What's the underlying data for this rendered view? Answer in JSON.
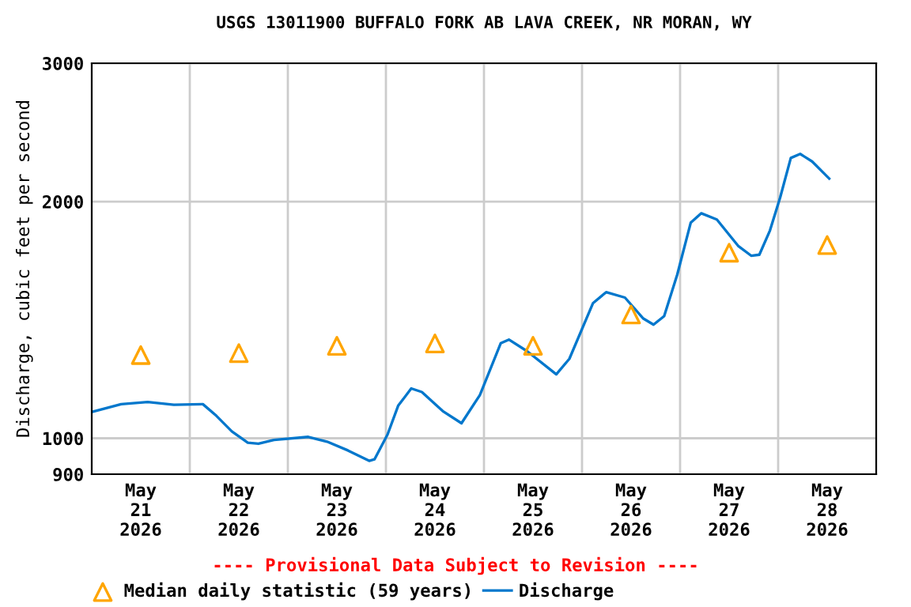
{
  "chart_data": {
    "type": "line",
    "title": "USGS 13011900 BUFFALO FORK AB LAVA CREEK, NR MORAN, WY",
    "ylabel": "Discharge, cubic feet per second",
    "annotations": [
      "---- Provisional Data Subject to Revision ----"
    ],
    "log": "y",
    "grid": true,
    "legend": "bottom",
    "xlim": [
      "2026-05-21T00:00",
      "2026-05-29T00:00"
    ],
    "xticks": [
      {
        "value": "2026-05-21T12:00",
        "label": "May\n21\n2026"
      },
      {
        "value": "2026-05-22T00:00",
        "label": null
      },
      {
        "value": "2026-05-22T12:00",
        "label": "May\n22\n2026"
      },
      {
        "value": "2026-05-23T00:00",
        "label": null
      },
      {
        "value": "2026-05-23T12:00",
        "label": "May\n23\n2026"
      },
      {
        "value": "2026-05-24T00:00",
        "label": null
      },
      {
        "value": "2026-05-24T12:00",
        "label": "May\n24\n2026"
      },
      {
        "value": "2026-05-25T00:00",
        "label": null
      },
      {
        "value": "2026-05-25T12:00",
        "label": "May\n25\n2026"
      },
      {
        "value": "2026-05-26T00:00",
        "label": null
      },
      {
        "value": "2026-05-26T12:00",
        "label": "May\n26\n2026"
      },
      {
        "value": "2026-05-27T00:00",
        "label": null
      },
      {
        "value": "2026-05-27T12:00",
        "label": "May\n27\n2026"
      },
      {
        "value": "2026-05-28T00:00",
        "label": null
      },
      {
        "value": "2026-05-28T12:00",
        "label": "May\n28\n2026"
      }
    ],
    "ylim": [
      900,
      3000
    ],
    "yticks": [
      900,
      1000,
      2000,
      3000
    ],
    "series": [
      {
        "name": "Median daily statistic (59 years)",
        "type": "scatter",
        "marker": "triangle",
        "color": "#ffa500",
        "x": [
          "2026-05-21T12:00",
          "2026-05-22T12:00",
          "2026-05-23T12:00",
          "2026-05-24T12:00",
          "2026-05-25T12:00",
          "2026-05-26T12:00",
          "2026-05-27T12:00",
          "2026-05-28T12:00"
        ],
        "values": [
          1276,
          1283,
          1311,
          1320,
          1311,
          1437,
          1722,
          1761
        ]
      },
      {
        "name": "Discharge",
        "marker": "none",
        "line_style": "solid",
        "color": "#0077cc",
        "x": [
          "2026-05-21T00:00",
          "2026-05-21T07:12",
          "2026-05-21T13:42",
          "2026-05-21T20:06",
          "2026-05-22T03:12",
          "2026-05-22T06:30",
          "2026-05-22T10:18",
          "2026-05-22T14:12",
          "2026-05-22T16:48",
          "2026-05-22T20:36",
          "2026-05-23T05:00",
          "2026-05-23T09:36",
          "2026-05-23T14:42",
          "2026-05-23T19:54",
          "2026-05-23T21:12",
          "2026-05-24T00:24",
          "2026-05-24T03:00",
          "2026-05-24T06:12",
          "2026-05-24T08:48",
          "2026-05-24T13:54",
          "2026-05-24T18:30",
          "2026-05-24T23:00",
          "2026-05-25T04:06",
          "2026-05-25T06:06",
          "2026-05-25T10:36",
          "2026-05-25T17:42",
          "2026-05-25T20:54",
          "2026-05-26T02:42",
          "2026-05-26T05:54",
          "2026-05-26T10:30",
          "2026-05-26T15:00",
          "2026-05-26T17:30",
          "2026-05-26T20:06",
          "2026-05-26T23:18",
          "2026-05-27T02:36",
          "2026-05-27T05:12",
          "2026-05-27T09:00",
          "2026-05-27T14:12",
          "2026-05-27T17:24",
          "2026-05-27T19:24",
          "2026-05-27T22:00",
          "2026-05-28T00:30",
          "2026-05-28T03:06",
          "2026-05-28T05:24",
          "2026-05-28T08:18",
          "2026-05-28T12:30"
        ],
        "values": [
          1080,
          1105,
          1112,
          1103,
          1105,
          1068,
          1020,
          987,
          984,
          995,
          1004,
          990,
          965,
          936,
          940,
          1011,
          1100,
          1157,
          1145,
          1083,
          1045,
          1135,
          1321,
          1335,
          1290,
          1206,
          1262,
          1486,
          1534,
          1510,
          1420,
          1395,
          1430,
          1615,
          1880,
          1933,
          1898,
          1757,
          1707,
          1712,
          1838,
          2025,
          2273,
          2300,
          2250,
          2140
        ]
      }
    ]
  }
}
